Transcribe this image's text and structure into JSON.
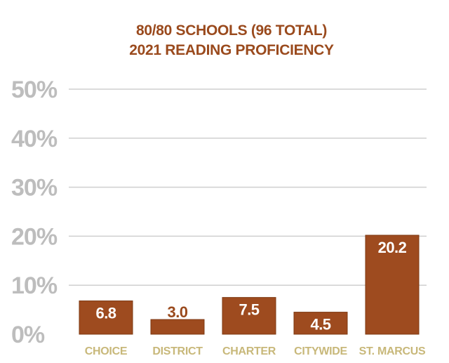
{
  "colors": {
    "title": "#9a4a1d",
    "bar": "#9e4b1f",
    "bar_edge": "#7d3812",
    "value_text": "#ffffff",
    "value_text_outside": "#9a4a1d",
    "tick_text": "#bdbdbd",
    "category_text": "#c8b87a",
    "grid": "#cfcfcf"
  },
  "chart_data": {
    "type": "bar",
    "title_lines": [
      "80/80 SCHOOLS (96 TOTAL)",
      "2021 READING PROFICIENCY"
    ],
    "categories": [
      "CHOICE",
      "DISTRICT",
      "CHARTER",
      "CITYWIDE",
      "ST. MARCUS"
    ],
    "values": [
      6.8,
      3.0,
      7.5,
      4.5,
      20.2
    ],
    "value_labels": [
      "6.8",
      "3.0",
      "7.5",
      "4.5",
      "20.2"
    ],
    "y_ticks": [
      0,
      10,
      20,
      30,
      40,
      50
    ],
    "y_tick_labels": [
      "0%",
      "10%",
      "20%",
      "30%",
      "40%",
      "50%"
    ],
    "ylim": [
      0,
      50
    ],
    "grid": true,
    "legend": "none"
  }
}
